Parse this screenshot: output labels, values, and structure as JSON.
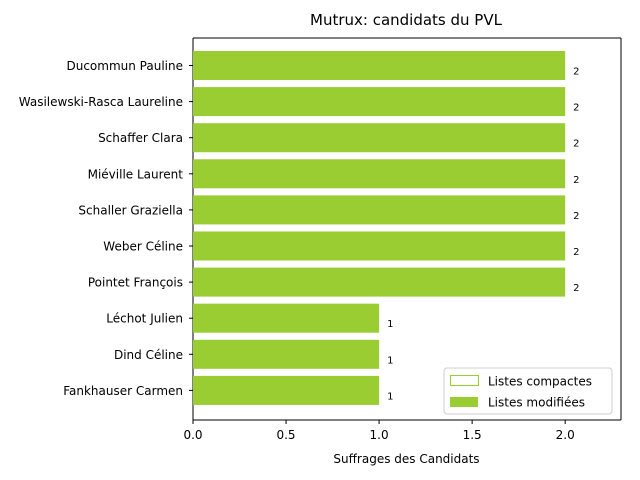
{
  "chart_data": {
    "type": "bar",
    "orientation": "horizontal",
    "title": "Mutrux: candidats du PVL",
    "xlabel": "Suffrages des Candidats",
    "ylabel": "",
    "xlim": [
      0,
      2.3
    ],
    "xticks": [
      "0.0",
      "0.5",
      "1.0",
      "1.5",
      "2.0"
    ],
    "grid": false,
    "legend_position": "lower-right",
    "colors": {
      "bar": "#9acd32",
      "edge": "#9acd32"
    },
    "categories": [
      "Ducommun Pauline",
      "Wasilewski-Rasca Laureline",
      "Schaffer Clara",
      "Miéville Laurent",
      "Schaller Graziella",
      "Weber Céline",
      "Pointet François",
      "Léchot Julien",
      "Dind Céline",
      "Fankhauser Carmen"
    ],
    "series": [
      {
        "name": "Listes compactes",
        "values": [
          0,
          0,
          0,
          0,
          0,
          0,
          0,
          0,
          0,
          0
        ]
      },
      {
        "name": "Listes modifiées",
        "values": [
          2,
          2,
          2,
          2,
          2,
          2,
          2,
          1,
          1,
          1
        ]
      }
    ],
    "data_labels": [
      "2",
      "2",
      "2",
      "2",
      "2",
      "2",
      "2",
      "1",
      "1",
      "1"
    ]
  }
}
